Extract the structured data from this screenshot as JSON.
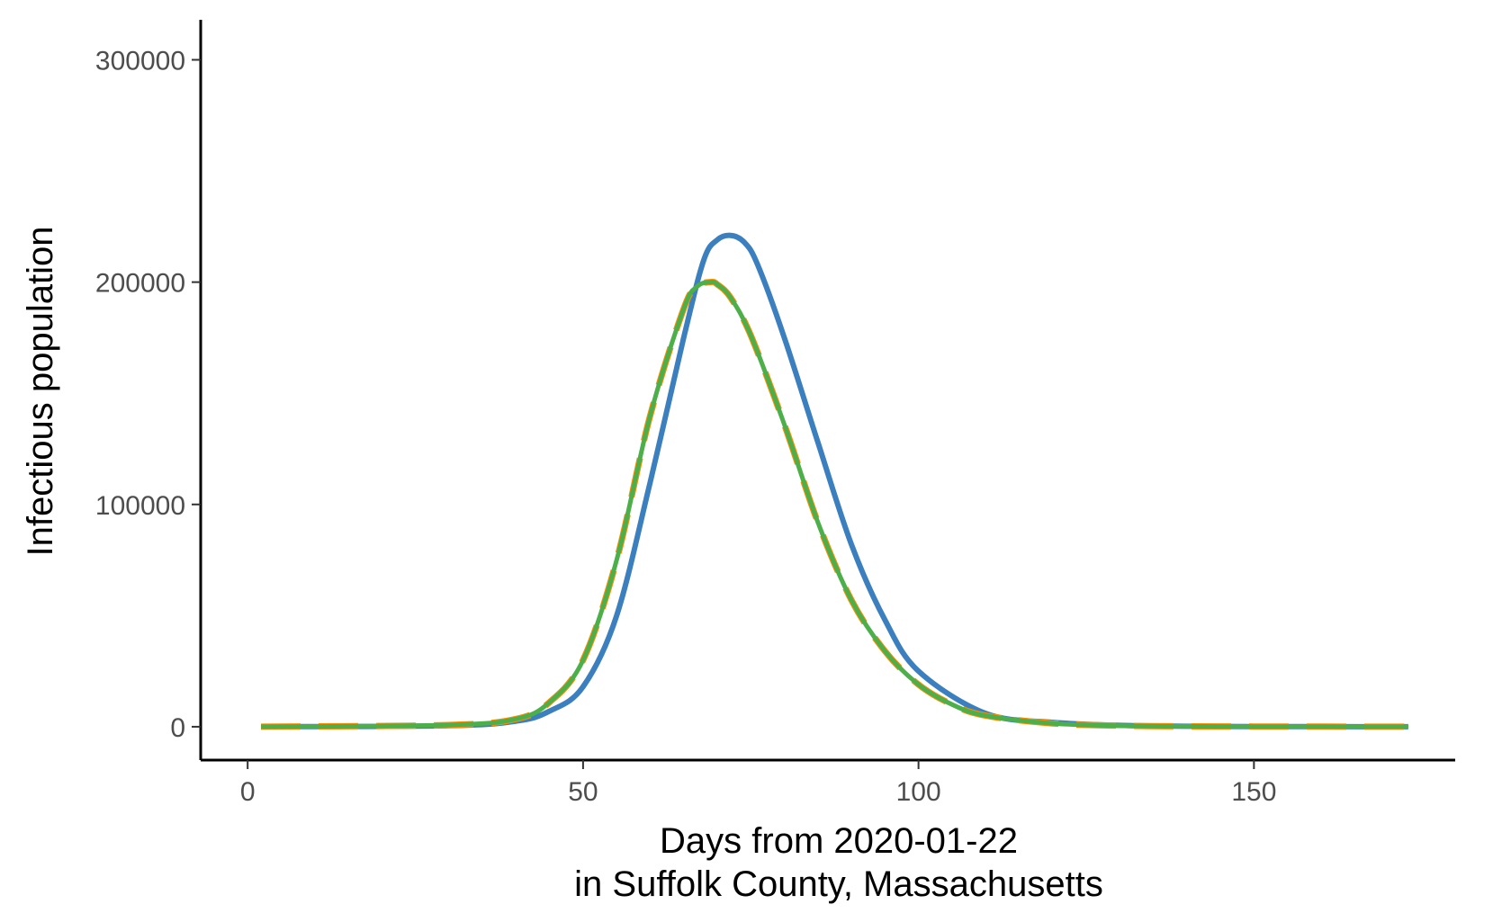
{
  "chart_data": {
    "type": "line",
    "title": "",
    "xlabel_line1": "Days from 2020-01-22",
    "xlabel_line2": "in Suffolk County, Massachusetts",
    "ylabel": "Infectious population",
    "xlim": [
      -7,
      180
    ],
    "ylim": [
      -15000,
      318000
    ],
    "xticks": [
      0,
      50,
      100,
      150
    ],
    "yticks": [
      0,
      100000,
      200000,
      300000
    ],
    "grid": false,
    "legend": "none",
    "series": [
      {
        "color": "#3c7fbf",
        "dash": "solid",
        "x": [
          2,
          30,
          40,
          45,
          50,
          55,
          60,
          65,
          68,
          70,
          72,
          74,
          76,
          80,
          85,
          90,
          95,
          100,
          110,
          120,
          130,
          140,
          150,
          160,
          173
        ],
        "y": [
          0,
          500,
          2500,
          7000,
          18000,
          50000,
          110000,
          175000,
          210000,
          219000,
          221000,
          218000,
          208000,
          175000,
          128000,
          82000,
          48000,
          25000,
          6000,
          2000,
          600,
          200,
          100,
          50,
          0
        ]
      },
      {
        "color": "#e3322b",
        "dash": "dash",
        "x": [
          2,
          30,
          40,
          45,
          50,
          55,
          60,
          65,
          67,
          69,
          70,
          72,
          75,
          80,
          85,
          90,
          95,
          100,
          105,
          110,
          120,
          130,
          140,
          150,
          160,
          173
        ],
        "y": [
          0,
          800,
          3500,
          11000,
          30000,
          75000,
          140000,
          188000,
          198000,
          200000,
          199000,
          193000,
          176000,
          136000,
          92000,
          57000,
          34000,
          19000,
          10000,
          5000,
          1500,
          500,
          200,
          100,
          50,
          0
        ]
      },
      {
        "color": "#ff8c00",
        "dash": "longdash",
        "x": [
          2,
          30,
          40,
          45,
          50,
          55,
          60,
          65,
          67,
          69,
          70,
          72,
          75,
          80,
          85,
          90,
          95,
          100,
          105,
          110,
          120,
          130,
          140,
          150,
          160,
          173
        ],
        "y": [
          0,
          800,
          3500,
          11000,
          30000,
          75000,
          140000,
          188000,
          198000,
          200000,
          199000,
          193000,
          176000,
          136000,
          92000,
          57000,
          34000,
          19000,
          10000,
          5000,
          1500,
          500,
          200,
          100,
          50,
          0
        ]
      },
      {
        "color": "#4daf4a",
        "dash": "solid",
        "x": [
          2,
          30,
          40,
          45,
          50,
          55,
          60,
          65,
          67,
          69,
          70,
          72,
          75,
          80,
          85,
          90,
          95,
          100,
          105,
          110,
          120,
          130,
          140,
          150,
          160,
          173
        ],
        "y": [
          0,
          800,
          3500,
          11000,
          30000,
          75000,
          140000,
          188000,
          198000,
          200000,
          199000,
          193000,
          176000,
          136000,
          92000,
          57000,
          34000,
          19000,
          10000,
          5000,
          1500,
          500,
          200,
          100,
          50,
          0
        ]
      }
    ]
  }
}
